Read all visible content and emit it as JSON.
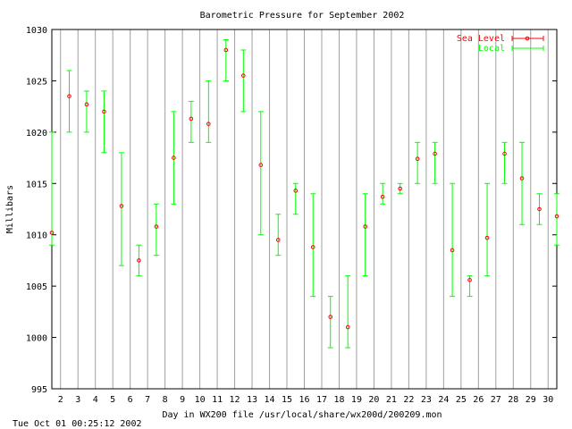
{
  "chart_data": {
    "type": "errorbar",
    "title": "Barometric Pressure for September 2002",
    "xlabel": "Day in WX200 file /usr/local/share/wx200d/200209.mon",
    "ylabel": "Millibars",
    "footer": "Tue Oct 01 00:25:12 2002",
    "xlim": [
      1.5,
      30.5
    ],
    "ylim": [
      995,
      1030
    ],
    "y_ticks": [
      995,
      1000,
      1005,
      1010,
      1015,
      1020,
      1025,
      1030
    ],
    "x_ticks": [
      2,
      3,
      4,
      5,
      6,
      7,
      8,
      9,
      10,
      11,
      12,
      13,
      14,
      15,
      16,
      17,
      18,
      19,
      20,
      21,
      22,
      23,
      24,
      25,
      26,
      27,
      28,
      29,
      30
    ],
    "grid": "vertical",
    "legend_position": "top-right",
    "series": [
      {
        "name": "Sea Level",
        "color": "#ff0000",
        "x": [
          1.5,
          2.5,
          3.5,
          4.5,
          5.5,
          6.5,
          7.5,
          8.5,
          9.5,
          10.5,
          11.5,
          12.5,
          13.5,
          14.5,
          15.5,
          16.5,
          17.5,
          18.5,
          19.5,
          20.5,
          21.5,
          22.5,
          23.5,
          24.5,
          25.5,
          26.5,
          27.5,
          28.5,
          29.5,
          30.5
        ],
        "values": [
          1010.2,
          1023.5,
          1022.7,
          1022.0,
          1012.8,
          1007.5,
          1010.8,
          1017.5,
          1021.3,
          1020.8,
          1028.0,
          1025.5,
          1016.8,
          1009.5,
          1014.3,
          1008.8,
          1002.0,
          1001.0,
          1010.8,
          1013.7,
          1014.5,
          1017.4,
          1017.9,
          1008.5,
          1005.6,
          1009.7,
          1017.9,
          1015.5,
          1012.5,
          1011.8
        ]
      },
      {
        "name": "Local",
        "color": "#00ff00",
        "x": [
          1.5,
          2.5,
          3.5,
          4.5,
          5.5,
          6.5,
          7.5,
          8.5,
          9.5,
          10.5,
          11.5,
          12.5,
          13.5,
          14.5,
          15.5,
          16.5,
          17.5,
          18.5,
          19.5,
          20.5,
          21.5,
          22.5,
          23.5,
          24.5,
          25.5,
          26.5,
          27.5,
          28.5,
          29.5,
          30.5
        ],
        "low": [
          1009.0,
          1020.0,
          1020.0,
          1018.0,
          1007.0,
          1006.0,
          1008.0,
          1013.0,
          1019.0,
          1019.0,
          1025.0,
          1022.0,
          1010.0,
          1008.0,
          1012.0,
          1004.0,
          999.0,
          999.0,
          1006.0,
          1013.0,
          1014.0,
          1015.0,
          1015.0,
          1004.0,
          1004.0,
          1006.0,
          1015.0,
          1011.0,
          1011.0,
          1009.0
        ],
        "high": [
          1020.0,
          1026.0,
          1024.0,
          1024.0,
          1018.0,
          1009.0,
          1013.0,
          1022.0,
          1023.0,
          1025.0,
          1029.0,
          1028.0,
          1022.0,
          1012.0,
          1015.0,
          1014.0,
          1004.0,
          1006.0,
          1014.0,
          1015.0,
          1015.0,
          1019.0,
          1019.0,
          1015.0,
          1006.0,
          1015.0,
          1019.0,
          1019.0,
          1014.0,
          1014.0
        ]
      }
    ]
  }
}
